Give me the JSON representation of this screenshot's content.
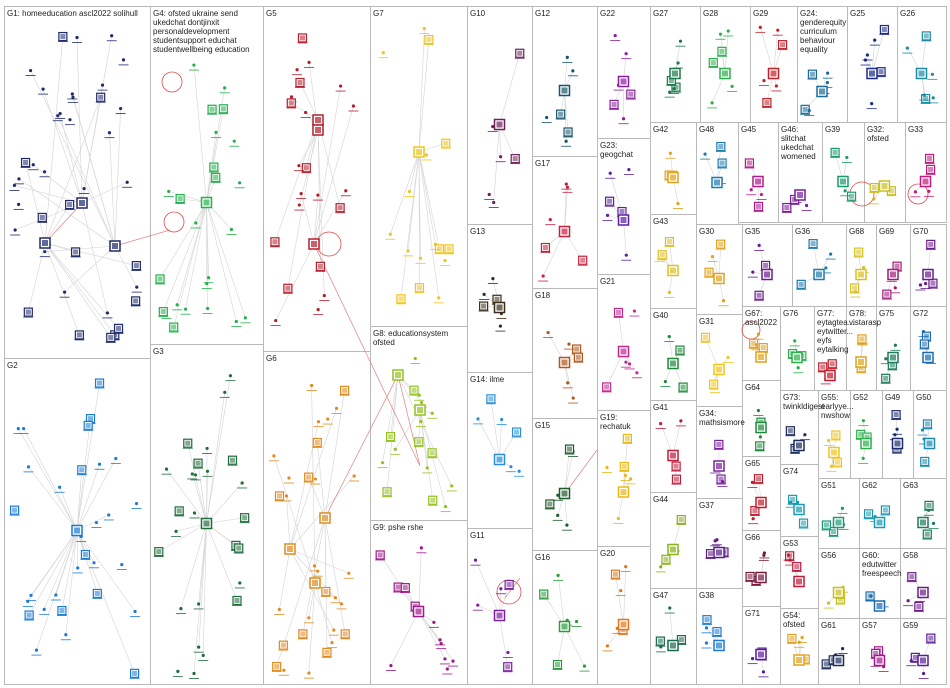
{
  "groups": [
    {
      "id": "G1",
      "label": "G1: homeeducation ascl2022 solihull",
      "color": "#1e2a6b"
    },
    {
      "id": "G2",
      "label": "G2",
      "color": "#1a7bd6"
    },
    {
      "id": "G3",
      "label": "G3",
      "color": "#1f6b3a"
    },
    {
      "id": "G4",
      "label": "G4: ofsted ukraine send ukedchat dontjinxit personaldevelopment studentsupport educhat studentwellbeing education",
      "color": "#21b04b"
    },
    {
      "id": "G5",
      "label": "G5",
      "color": "#b51d2b"
    },
    {
      "id": "G6",
      "label": "G6",
      "color": "#e08a1f"
    },
    {
      "id": "G7",
      "label": "G7",
      "color": "#f0c419"
    },
    {
      "id": "G8",
      "label": "G8: educationsystem ofsted",
      "color": "#93c01f"
    },
    {
      "id": "G9",
      "label": "G9: pshe rshe",
      "color": "#a0168a"
    },
    {
      "id": "G10",
      "label": "G10",
      "color": "#6d1f5a"
    },
    {
      "id": "G11",
      "label": "G11",
      "color": "#7a1fa0"
    },
    {
      "id": "G12",
      "label": "G12",
      "color": "#16546b"
    },
    {
      "id": "G13",
      "label": "G13",
      "color": "#3a2a1a"
    },
    {
      "id": "G14",
      "label": "G14: ilme",
      "color": "#2a8fd6"
    },
    {
      "id": "G15",
      "label": "G15",
      "color": "#1e5a2a"
    },
    {
      "id": "G16",
      "label": "G16",
      "color": "#2a9a3a"
    },
    {
      "id": "G17",
      "label": "G17",
      "color": "#c8203a"
    },
    {
      "id": "G18",
      "label": "G18",
      "color": "#b0561a"
    },
    {
      "id": "G19",
      "label": "G19: rechatuk",
      "color": "#e8b818"
    },
    {
      "id": "G20",
      "label": "G20",
      "color": "#e0761a"
    },
    {
      "id": "G21",
      "label": "G21",
      "color": "#c02a8a"
    },
    {
      "id": "G22",
      "label": "G22",
      "color": "#8a1f9a"
    },
    {
      "id": "G23",
      "label": "G23: geogchat",
      "color": "#5a1fa0"
    },
    {
      "id": "G24",
      "label": "G24: genderequity curriculum behaviour equality",
      "color": "#1a6a9a"
    },
    {
      "id": "G25",
      "label": "G25",
      "color": "#1a2a8a"
    },
    {
      "id": "G26",
      "label": "G26",
      "color": "#1a8aa0"
    },
    {
      "id": "G27",
      "label": "G27",
      "color": "#1a7a4a"
    },
    {
      "id": "G28",
      "label": "G28",
      "color": "#2ab04a"
    },
    {
      "id": "G29",
      "label": "G29",
      "color": "#c0202a"
    },
    {
      "id": "G30",
      "label": "G30",
      "color": "#e0a01a"
    },
    {
      "id": "G31",
      "label": "G31",
      "color": "#f0c419"
    },
    {
      "id": "G32",
      "label": "G32: ofsted",
      "color": "#c8c01a"
    },
    {
      "id": "G33",
      "label": "G33",
      "color": "#c01a7a"
    },
    {
      "id": "G34",
      "label": "G34: mathsismore",
      "color": "#7a1fa0"
    },
    {
      "id": "G35",
      "label": "G35",
      "color": "#6a1a8a"
    },
    {
      "id": "G36",
      "label": "G36",
      "color": "#1a7ab0"
    },
    {
      "id": "G37",
      "label": "G37",
      "color": "#5a1a8a"
    },
    {
      "id": "G38",
      "label": "G38",
      "color": "#1a7ad6"
    },
    {
      "id": "G39",
      "label": "G39",
      "color": "#1a9a6a"
    },
    {
      "id": "G40",
      "label": "G40",
      "color": "#1a8a3a"
    },
    {
      "id": "G41",
      "label": "G41",
      "color": "#c01a3a"
    },
    {
      "id": "G42",
      "label": "G42",
      "color": "#e0a01a"
    },
    {
      "id": "G43",
      "label": "G43",
      "color": "#e0c01a"
    },
    {
      "id": "G44",
      "label": "G44",
      "color": "#8ab01a"
    },
    {
      "id": "G45",
      "label": "G45",
      "color": "#b01a8a"
    },
    {
      "id": "G46",
      "label": "G46: slitchat ukedchat womened",
      "color": "#7a1a9a"
    },
    {
      "id": "G47",
      "label": "G47",
      "color": "#1a6a4a"
    },
    {
      "id": "G48",
      "label": "G48",
      "color": "#1a7ab0"
    },
    {
      "id": "G49",
      "label": "G49",
      "color": "#1a2a6a"
    },
    {
      "id": "G50",
      "label": "G50",
      "color": "#1a8ab0"
    },
    {
      "id": "G51",
      "label": "G51",
      "color": "#1a9a7a"
    },
    {
      "id": "G52",
      "label": "G52",
      "color": "#2ab04a"
    },
    {
      "id": "G53",
      "label": "G53",
      "color": "#c01a3a"
    },
    {
      "id": "G54",
      "label": "G54: ofsted",
      "color": "#e0a01a"
    },
    {
      "id": "G55",
      "label": "G55: earlyye... nwshow",
      "color": "#f0c419"
    },
    {
      "id": "G56",
      "label": "G56",
      "color": "#c8c01a"
    },
    {
      "id": "G57",
      "label": "G57",
      "color": "#a01a8a"
    },
    {
      "id": "G58",
      "label": "G58",
      "color": "#6a1a8a"
    },
    {
      "id": "G59",
      "label": "G59",
      "color": "#5a1a9a"
    },
    {
      "id": "G60",
      "label": "G60: edutwitter freespeech",
      "color": "#1a6ab0"
    },
    {
      "id": "G61",
      "label": "G61",
      "color": "#1a2a5a"
    },
    {
      "id": "G62",
      "label": "G62",
      "color": "#1a9ab0"
    },
    {
      "id": "G63",
      "label": "G63",
      "color": "#1a7a5a"
    },
    {
      "id": "G64",
      "label": "G64",
      "color": "#1a8a3a"
    },
    {
      "id": "G65",
      "label": "G65",
      "color": "#c01a2a"
    },
    {
      "id": "G66",
      "label": "G66",
      "color": "#7a1a3a"
    },
    {
      "id": "G67",
      "label": "G67: ascl2022",
      "color": "#e0a01a"
    },
    {
      "id": "G68",
      "label": "G68",
      "color": "#d8c01a"
    },
    {
      "id": "G69",
      "label": "G69",
      "color": "#a01a7a"
    },
    {
      "id": "G70",
      "label": "G70",
      "color": "#6a1a8a"
    },
    {
      "id": "G71",
      "label": "G71",
      "color": "#5a1a9a"
    },
    {
      "id": "G72",
      "label": "G72",
      "color": "#1a6ab0"
    },
    {
      "id": "G73",
      "label": "G73: twinkldigest",
      "color": "#1a2a5a"
    },
    {
      "id": "G74",
      "label": "G74",
      "color": "#1a9ab0"
    },
    {
      "id": "G75",
      "label": "G75",
      "color": "#1a7a5a"
    },
    {
      "id": "G76",
      "label": "G76",
      "color": "#2ab04a"
    },
    {
      "id": "G77",
      "label": "G77: eytagtea... eytwitter... eyfs eytalking",
      "color": "#c01a2a"
    },
    {
      "id": "G78",
      "label": "G78: vistarasp",
      "color": "#e0a01a"
    }
  ]
}
